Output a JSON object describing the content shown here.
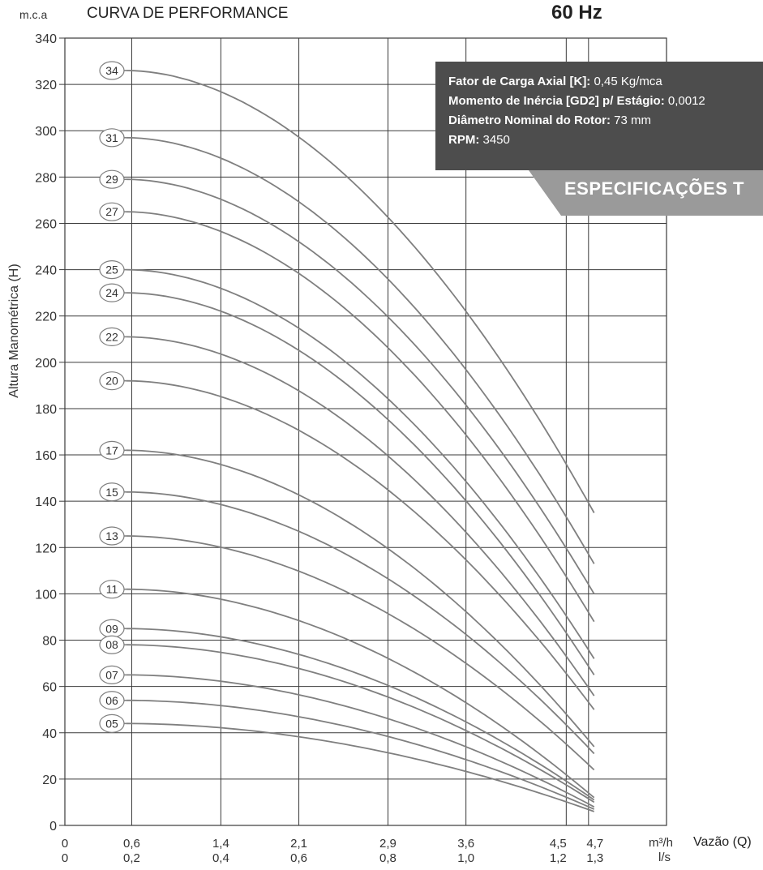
{
  "header": {
    "y_unit": "m.c.a",
    "title": "CURVA DE PERFORMANCE",
    "frequency": "60 Hz"
  },
  "specs": {
    "lines": [
      {
        "label": "Fator de Carga Axial [K]:",
        "value": " 0,45 Kg/mca"
      },
      {
        "label": "Momento de Inércia [GD2] p/ Estágio:",
        "value": " 0,0012"
      },
      {
        "label": "Diâmetro Nominal do Rotor:",
        "value": " 73 mm"
      },
      {
        "label": "RPM:",
        "value": " 3450"
      }
    ],
    "tab_label": "ESPECIFICAÇÕES T"
  },
  "chart_data": {
    "type": "line",
    "title": "CURVA DE PERFORMANCE",
    "ylabel": "Altura Manométrica (H)",
    "xlabel": "Vazão (Q)",
    "x_unit_primary": "m³/h",
    "x_unit_secondary": "l/s",
    "ylim": [
      0,
      340
    ],
    "y_ticks": [
      0,
      20,
      40,
      60,
      80,
      100,
      120,
      140,
      160,
      180,
      200,
      220,
      240,
      260,
      280,
      300,
      320,
      340
    ],
    "x_ticks": [
      {
        "q": 0,
        "m3h": "0",
        "ls": "0"
      },
      {
        "q": 0.6,
        "m3h": "0,6",
        "ls": "0,2"
      },
      {
        "q": 1.4,
        "m3h": "1,4",
        "ls": "0,4"
      },
      {
        "q": 2.1,
        "m3h": "2,1",
        "ls": "0,6"
      },
      {
        "q": 2.9,
        "m3h": "2,9",
        "ls": "0,8"
      },
      {
        "q": 3.6,
        "m3h": "3,6",
        "ls": "1,0"
      },
      {
        "q": 4.5,
        "m3h": "4,5",
        "ls": "1,2"
      },
      {
        "q": 4.7,
        "m3h": "4,7",
        "ls": "1,3"
      }
    ],
    "grid": true,
    "x_max": 5.4,
    "q_start": 0.55,
    "q_end": 4.75,
    "series": [
      {
        "name": "34",
        "shutoff": 326,
        "end": 135
      },
      {
        "name": "31",
        "shutoff": 297,
        "end": 113
      },
      {
        "name": "29",
        "shutoff": 279,
        "end": 100
      },
      {
        "name": "27",
        "shutoff": 265,
        "end": 88
      },
      {
        "name": "25",
        "shutoff": 240,
        "end": 72
      },
      {
        "name": "24",
        "shutoff": 230,
        "end": 65
      },
      {
        "name": "22",
        "shutoff": 211,
        "end": 56
      },
      {
        "name": "20",
        "shutoff": 192,
        "end": 50
      },
      {
        "name": "17",
        "shutoff": 162,
        "end": 34
      },
      {
        "name": "15",
        "shutoff": 144,
        "end": 31
      },
      {
        "name": "13",
        "shutoff": 125,
        "end": 24
      },
      {
        "name": "11",
        "shutoff": 102,
        "end": 12
      },
      {
        "name": "09",
        "shutoff": 85,
        "end": 11
      },
      {
        "name": "08",
        "shutoff": 78,
        "end": 10
      },
      {
        "name": "07",
        "shutoff": 65,
        "end": 8
      },
      {
        "name": "06",
        "shutoff": 54,
        "end": 7
      },
      {
        "name": "05",
        "shutoff": 44,
        "end": 6
      }
    ]
  },
  "colors": {
    "curve": "#7f7f7f",
    "grid": "#3a3a3a",
    "spec_box": "#4d4d4d",
    "spec_tab": "#9a9a9a"
  }
}
